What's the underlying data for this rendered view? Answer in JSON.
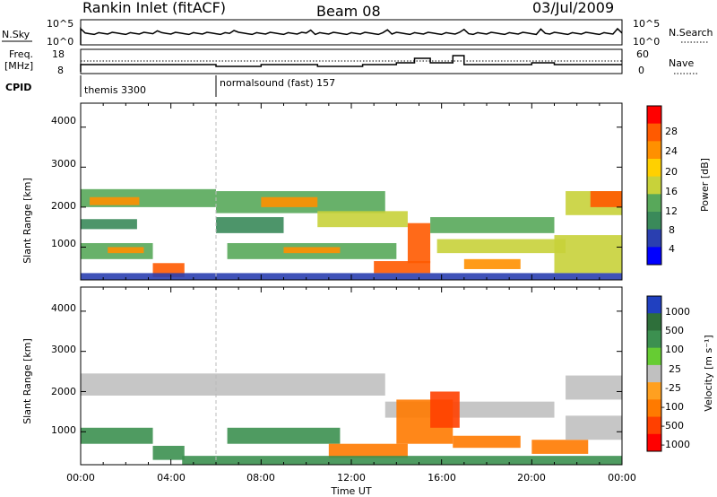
{
  "header": {
    "station": "Rankin Inlet (fitACF)",
    "beam": "Beam 08",
    "date": "03/Jul/2009"
  },
  "summary": {
    "nsky_label": "N.Sky",
    "nsky_ticks": [
      "10^5",
      "10^0"
    ],
    "nsearch_label": "N.Search",
    "nsearch_ticks": [
      "10^5",
      "10^0"
    ],
    "freq_label_1": "Freq.",
    "freq_label_2": "[MHz]",
    "freq_ticks": [
      "18",
      "8"
    ],
    "nave_label": "Nave",
    "nave_ticks": [
      "60",
      "0"
    ],
    "cpid_label": "CPID",
    "cpid_entries": [
      {
        "text": "themis 3300",
        "start_hour": 0
      },
      {
        "text": "normalsound (fast) 157",
        "start_hour": 6
      }
    ]
  },
  "time_axis": {
    "label": "Time UT",
    "ticks": [
      "00:00",
      "04:00",
      "08:00",
      "12:00",
      "16:00",
      "20:00",
      "00:00"
    ]
  },
  "power_panel": {
    "ylabel": "Slant Range [km]",
    "yticks": [
      "1000",
      "2000",
      "3000",
      "4000"
    ],
    "colorbar_label": "Power [dB]",
    "colorbar_ticks": [
      "4",
      "8",
      "12",
      "16",
      "20",
      "24",
      "28"
    ]
  },
  "velocity_panel": {
    "ylabel": "Slant Range [km]",
    "yticks": [
      "1000",
      "2000",
      "3000",
      "4000"
    ],
    "colorbar_label": "Velocity [m s⁻¹]",
    "colorbar_ticks": [
      "1000",
      "500",
      "100",
      "25",
      "-25",
      "-100",
      "-500",
      "-1000"
    ]
  },
  "colors": {
    "power_scale": [
      "#0000ff",
      "#2a3fb0",
      "#3a8a5a",
      "#58a85a",
      "#c8d23a",
      "#ffd000",
      "#ff9000",
      "#ff5a00",
      "#ff0000"
    ],
    "velocity_scale": [
      "#2040c0",
      "#2e6f3a",
      "#3c9050",
      "#66cc33",
      "#c0c0c0",
      "#ffa020",
      "#ff7a00",
      "#ff4000",
      "#ff0000"
    ]
  },
  "chart_data": [
    {
      "type": "heatmap",
      "title": "Rankin Inlet (fitACF) Beam 08 03/Jul/2009",
      "xlabel": "Time UT",
      "ylabel": "Slant Range [km]",
      "colorbar": "Power [dB]",
      "xlim": [
        0,
        24
      ],
      "ylim": [
        180,
        4600
      ],
      "zlim": [
        0,
        30
      ],
      "blocks": [
        {
          "t0": 0.0,
          "t1": 6.0,
          "r0": 2000,
          "r1": 2450,
          "v": 12
        },
        {
          "t0": 0.4,
          "t1": 2.6,
          "r0": 2050,
          "r1": 2250,
          "v": 20
        },
        {
          "t0": 0.0,
          "t1": 2.5,
          "r0": 1450,
          "r1": 1700,
          "v": 8
        },
        {
          "t0": 0.0,
          "t1": 3.2,
          "r0": 700,
          "r1": 1100,
          "v": 12
        },
        {
          "t0": 1.2,
          "t1": 2.8,
          "r0": 850,
          "r1": 1000,
          "v": 20
        },
        {
          "t0": 3.2,
          "t1": 4.6,
          "r0": 250,
          "r1": 600,
          "v": 26
        },
        {
          "t0": 6.0,
          "t1": 13.5,
          "r0": 1850,
          "r1": 2400,
          "v": 12
        },
        {
          "t0": 8.0,
          "t1": 10.5,
          "r0": 2000,
          "r1": 2250,
          "v": 22
        },
        {
          "t0": 10.5,
          "t1": 14.5,
          "r0": 1500,
          "r1": 1900,
          "v": 16
        },
        {
          "t0": 6.0,
          "t1": 9.0,
          "r0": 1350,
          "r1": 1750,
          "v": 8
        },
        {
          "t0": 6.5,
          "t1": 14.0,
          "r0": 700,
          "r1": 1100,
          "v": 12
        },
        {
          "t0": 9.0,
          "t1": 11.5,
          "r0": 850,
          "r1": 1000,
          "v": 22
        },
        {
          "t0": 13.0,
          "t1": 15.5,
          "r0": 350,
          "r1": 650,
          "v": 26
        },
        {
          "t0": 14.5,
          "t1": 15.5,
          "r0": 600,
          "r1": 1600,
          "v": 26
        },
        {
          "t0": 15.5,
          "t1": 21.0,
          "r0": 1350,
          "r1": 1750,
          "v": 10
        },
        {
          "t0": 15.8,
          "t1": 21.5,
          "r0": 850,
          "r1": 1200,
          "v": 16
        },
        {
          "t0": 17.0,
          "t1": 19.5,
          "r0": 450,
          "r1": 700,
          "v": 20
        },
        {
          "t0": 21.5,
          "t1": 24.0,
          "r0": 1800,
          "r1": 2400,
          "v": 16
        },
        {
          "t0": 22.6,
          "t1": 24.0,
          "r0": 2000,
          "r1": 2400,
          "v": 24
        },
        {
          "t0": 21.0,
          "t1": 24.0,
          "r0": 350,
          "r1": 1300,
          "v": 14
        },
        {
          "t0": 0.0,
          "t1": 24.0,
          "r0": 180,
          "r1": 350,
          "v": 6
        }
      ]
    },
    {
      "type": "heatmap",
      "title": "Rankin Inlet (fitACF) Beam 08 03/Jul/2009",
      "xlabel": "Time UT",
      "ylabel": "Slant Range [km]",
      "colorbar": "Velocity [m s⁻¹]",
      "xlim": [
        0,
        24
      ],
      "ylim": [
        180,
        4600
      ],
      "zlim": [
        -1000,
        1000
      ],
      "blocks": [
        {
          "t0": 0.0,
          "t1": 13.5,
          "r0": 1900,
          "r1": 2450,
          "v": 0
        },
        {
          "t0": 13.5,
          "t1": 21.0,
          "r0": 1350,
          "r1": 1750,
          "v": 0
        },
        {
          "t0": 21.5,
          "t1": 24.0,
          "r0": 1800,
          "r1": 2400,
          "v": 0
        },
        {
          "t0": 0.0,
          "t1": 3.2,
          "r0": 700,
          "r1": 1100,
          "v": 60
        },
        {
          "t0": 3.2,
          "t1": 4.6,
          "r0": 300,
          "r1": 650,
          "v": 60
        },
        {
          "t0": 6.5,
          "t1": 11.5,
          "r0": 700,
          "r1": 1100,
          "v": 60
        },
        {
          "t0": 11.0,
          "t1": 14.5,
          "r0": 350,
          "r1": 700,
          "v": -150
        },
        {
          "t0": 14.0,
          "t1": 16.5,
          "r0": 700,
          "r1": 1800,
          "v": -300
        },
        {
          "t0": 15.5,
          "t1": 16.8,
          "r0": 1100,
          "r1": 2000,
          "v": -600
        },
        {
          "t0": 16.5,
          "t1": 19.5,
          "r0": 600,
          "r1": 900,
          "v": -150
        },
        {
          "t0": 20.0,
          "t1": 22.5,
          "r0": 450,
          "r1": 800,
          "v": -150
        },
        {
          "t0": 21.5,
          "t1": 24.0,
          "r0": 800,
          "r1": 1400,
          "v": 0
        },
        {
          "t0": 4.5,
          "t1": 24.0,
          "r0": 180,
          "r1": 400,
          "v": 80
        }
      ]
    }
  ]
}
